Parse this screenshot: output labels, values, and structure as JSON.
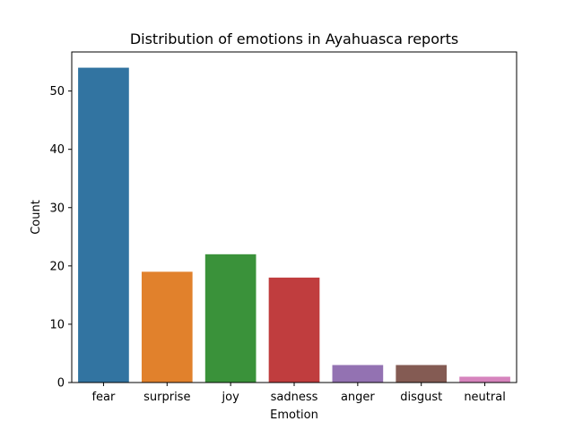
{
  "chart_data": {
    "type": "bar",
    "title": "Distribution of emotions in Ayahuasca reports",
    "xlabel": "Emotion",
    "ylabel": "Count",
    "categories": [
      "fear",
      "surprise",
      "joy",
      "sadness",
      "anger",
      "disgust",
      "neutral"
    ],
    "values": [
      54,
      19,
      22,
      18,
      3,
      3,
      1
    ],
    "colors": [
      "#3274a1",
      "#e1812c",
      "#3a923a",
      "#c03d3e",
      "#9372b2",
      "#845b53",
      "#d684bd"
    ],
    "ylim": [
      0,
      56.7
    ],
    "yticks": [
      0,
      10,
      20,
      30,
      40,
      50
    ],
    "grid": false,
    "legend": "none"
  }
}
